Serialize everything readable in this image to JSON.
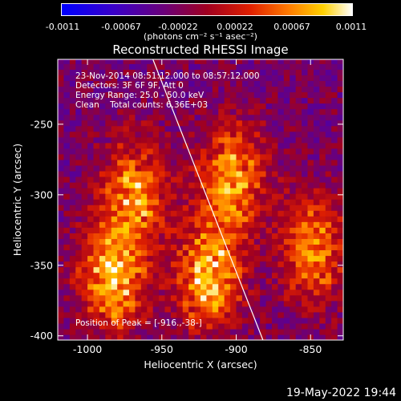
{
  "colorbar": {
    "ticks": [
      "-0.0011",
      "-0.00067",
      "-0.00022",
      "0.00022",
      "0.00067",
      "0.0011"
    ],
    "unit_label": "(photons cm⁻² s⁻¹ asec⁻²)"
  },
  "annotation": {
    "line1": "23-Nov-2014 08:51:12.000 to 08:57:12.000",
    "line2": "Detectors: 3F 6F 9F, Att 0",
    "line3": "Energy Range: 25.0 - 50.0 keV",
    "line4": "Clean    Total counts: 6.36E+03",
    "peak": "Position of Peak = [-916.,-38-]"
  },
  "footer": {
    "timestamp": "19-May-2022 19:44"
  },
  "chart_data": {
    "type": "heatmap",
    "title": "Reconstructed RHESSI Image",
    "xlabel": "Heliocentric X (arcsec)",
    "ylabel": "Heliocentric Y (arcsec)",
    "xlim": [
      -1020,
      -828
    ],
    "ylim": [
      -403,
      -204
    ],
    "xticks": [
      -1000,
      -950,
      -900,
      -850
    ],
    "yticks": [
      -250,
      -300,
      -350,
      -400
    ],
    "xtick_labels": [
      "-1000",
      "-950",
      "-900",
      "-850"
    ],
    "ytick_labels": [
      "-250",
      "-300",
      "-350",
      "-400"
    ],
    "colorbar_range": [
      -0.0011,
      0.0011
    ],
    "colormap": "purple-red-yellow",
    "limb_line": [
      [
        -956,
        -204
      ],
      [
        -882,
        -403
      ]
    ],
    "bright_regions": [
      {
        "x": -970,
        "y": -300,
        "level": 0.0009
      },
      {
        "x": -985,
        "y": -360,
        "level": 0.0011
      },
      {
        "x": -905,
        "y": -290,
        "level": 0.001
      },
      {
        "x": -920,
        "y": -360,
        "level": 0.0011
      },
      {
        "x": -850,
        "y": -340,
        "level": 0.0009
      }
    ]
  }
}
